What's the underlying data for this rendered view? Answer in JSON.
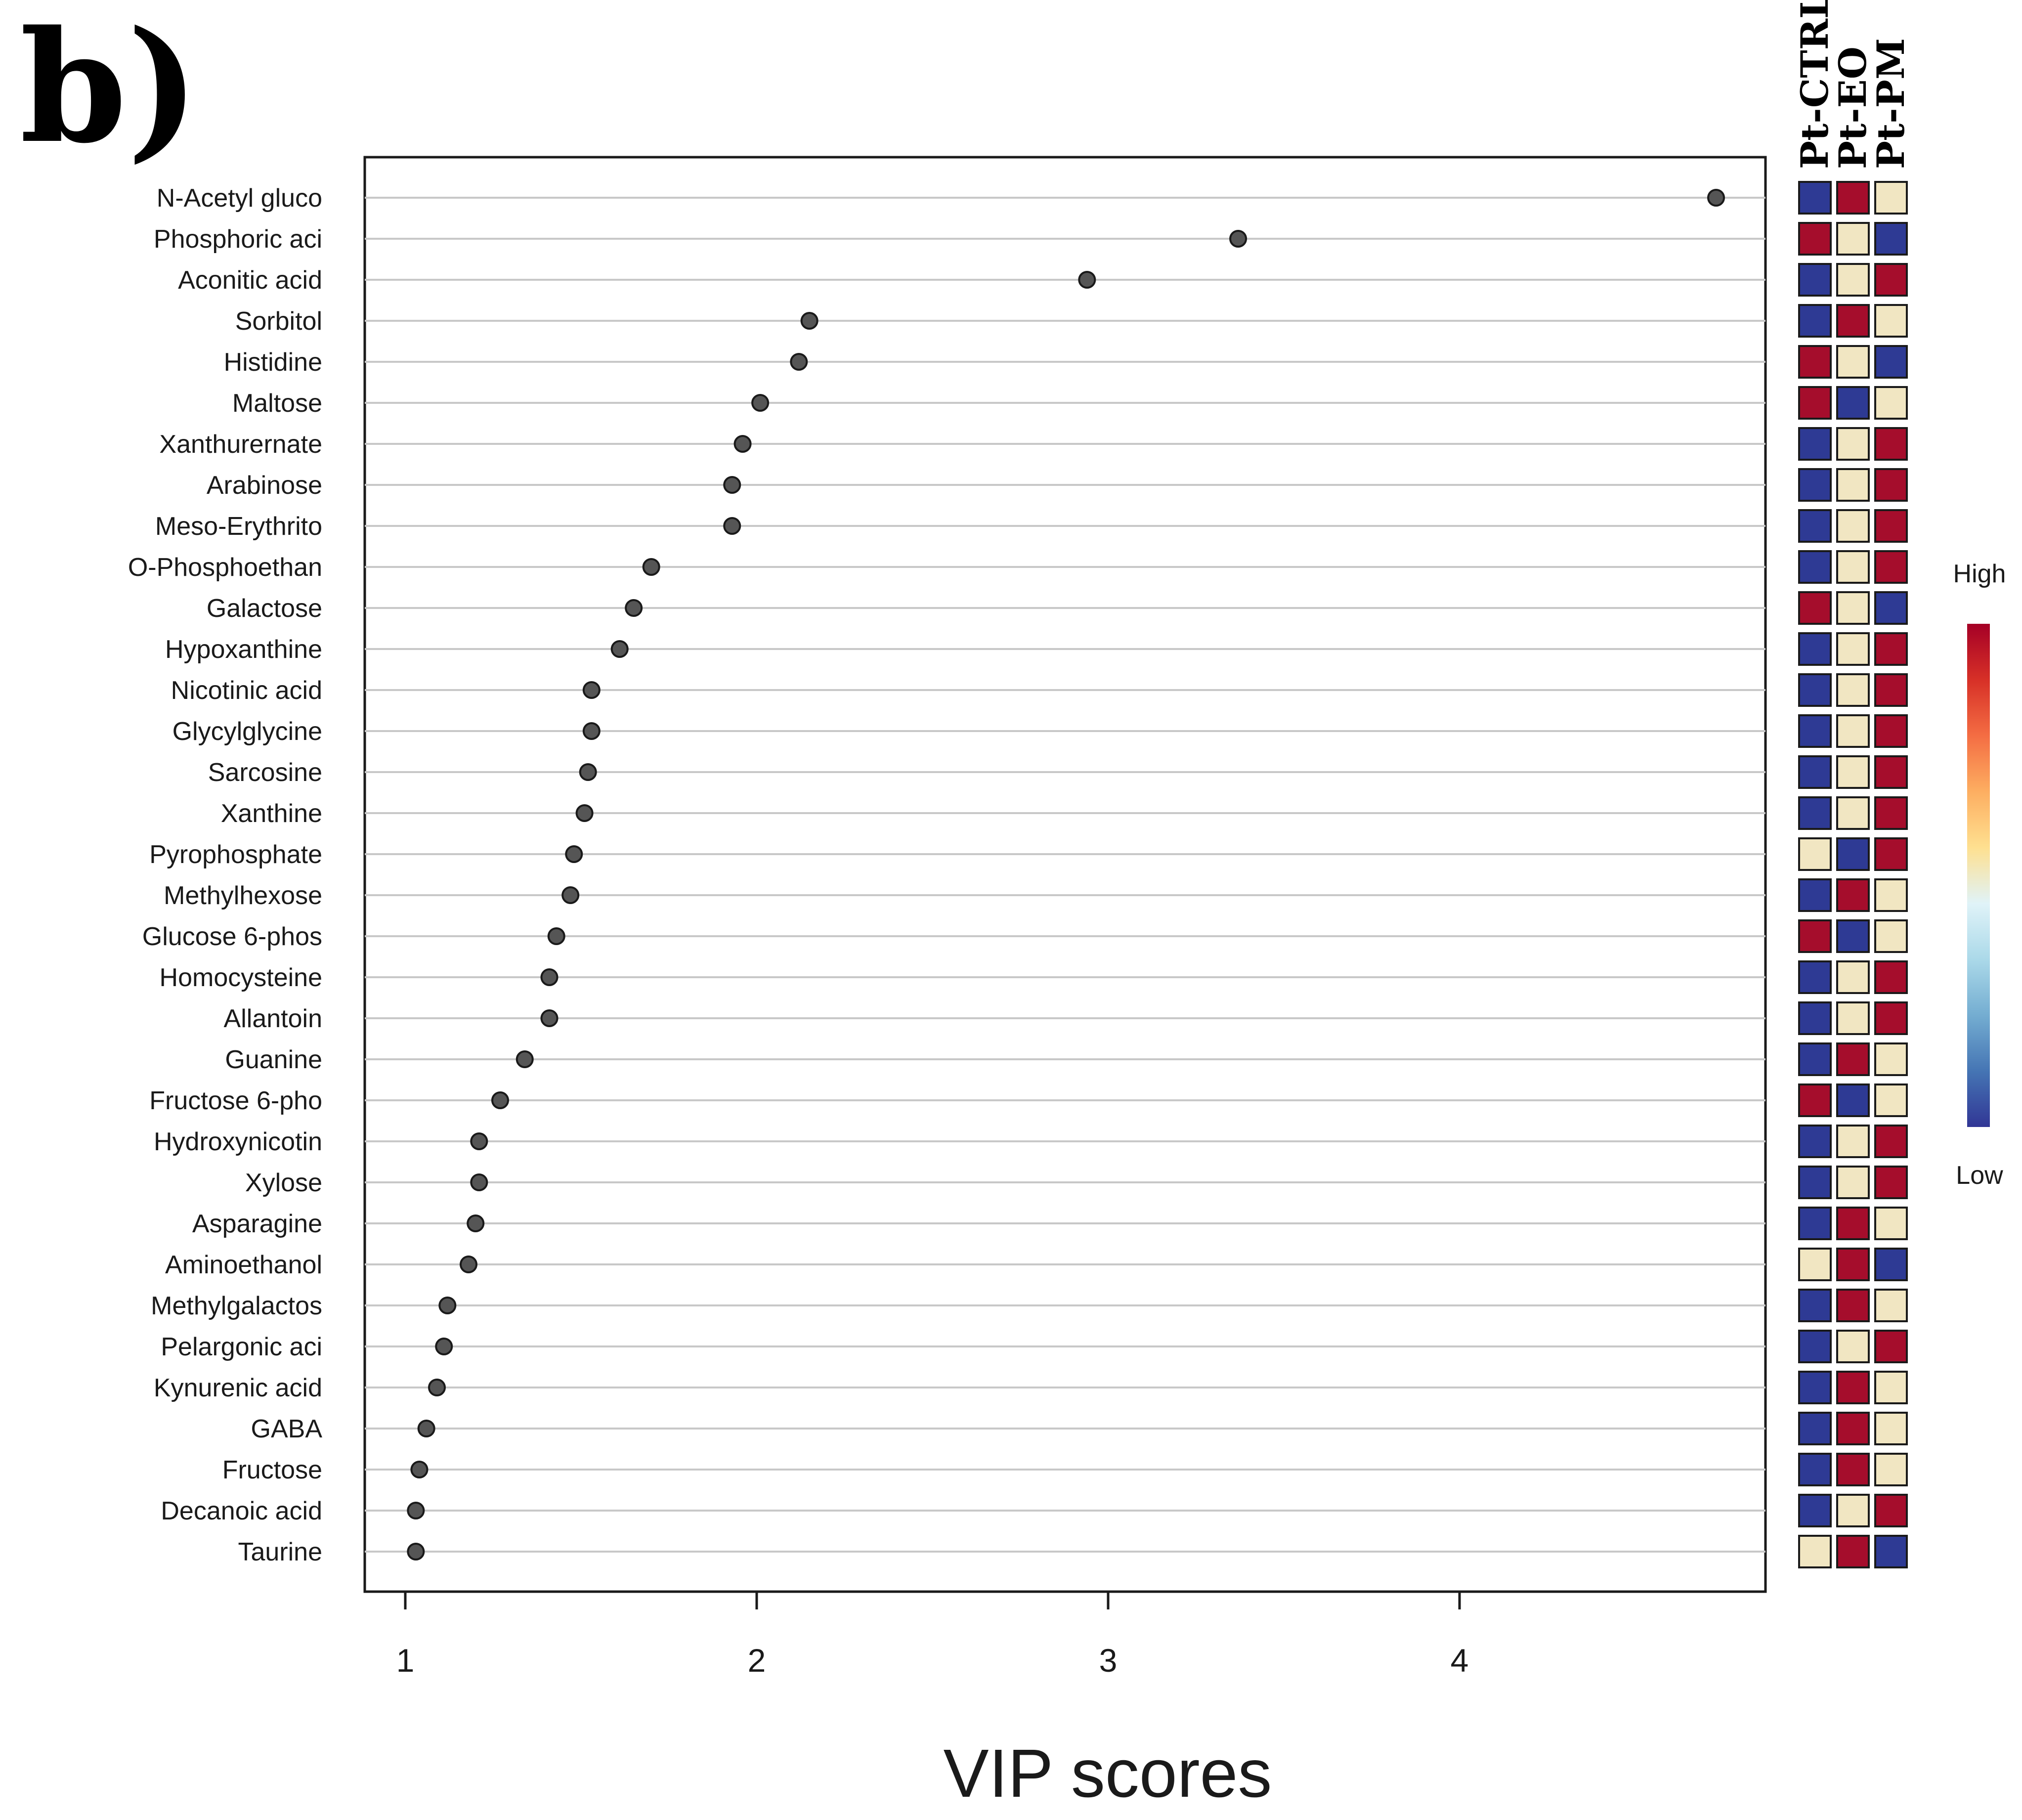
{
  "panel_label": "b)",
  "chart_data": {
    "type": "scatter",
    "title": "",
    "xlabel": "VIP scores",
    "ylabel": "",
    "xlim": [
      0.88,
      4.88
    ],
    "xticks": [
      1,
      2,
      3,
      4
    ],
    "grid": true,
    "metabolites": [
      {
        "name": "N-Acetyl gluco",
        "vip": 4.73,
        "levels": [
          "low",
          "high",
          "mid"
        ]
      },
      {
        "name": "Phosphoric aci",
        "vip": 3.37,
        "levels": [
          "high",
          "mid",
          "low"
        ]
      },
      {
        "name": "Aconitic acid",
        "vip": 2.94,
        "levels": [
          "low",
          "mid",
          "high"
        ]
      },
      {
        "name": "Sorbitol",
        "vip": 2.15,
        "levels": [
          "low",
          "high",
          "mid"
        ]
      },
      {
        "name": "Histidine",
        "vip": 2.12,
        "levels": [
          "high",
          "mid",
          "low"
        ]
      },
      {
        "name": "Maltose",
        "vip": 2.01,
        "levels": [
          "high",
          "low",
          "mid"
        ]
      },
      {
        "name": "Xanthurernate",
        "vip": 1.96,
        "levels": [
          "low",
          "mid",
          "high"
        ]
      },
      {
        "name": "Arabinose",
        "vip": 1.93,
        "levels": [
          "low",
          "mid",
          "high"
        ]
      },
      {
        "name": "Meso-Erythrito",
        "vip": 1.93,
        "levels": [
          "low",
          "mid",
          "high"
        ]
      },
      {
        "name": "O-Phosphoethan",
        "vip": 1.7,
        "levels": [
          "low",
          "mid",
          "high"
        ]
      },
      {
        "name": "Galactose",
        "vip": 1.65,
        "levels": [
          "high",
          "mid",
          "low"
        ]
      },
      {
        "name": "Hypoxanthine",
        "vip": 1.61,
        "levels": [
          "low",
          "mid",
          "high"
        ]
      },
      {
        "name": "Nicotinic acid",
        "vip": 1.53,
        "levels": [
          "low",
          "mid",
          "high"
        ]
      },
      {
        "name": "Glycylglycine",
        "vip": 1.53,
        "levels": [
          "low",
          "mid",
          "high"
        ]
      },
      {
        "name": "Sarcosine",
        "vip": 1.52,
        "levels": [
          "low",
          "mid",
          "high"
        ]
      },
      {
        "name": "Xanthine",
        "vip": 1.51,
        "levels": [
          "low",
          "mid",
          "high"
        ]
      },
      {
        "name": "Pyrophosphate",
        "vip": 1.48,
        "levels": [
          "mid",
          "low",
          "high"
        ]
      },
      {
        "name": "Methylhexose",
        "vip": 1.47,
        "levels": [
          "low",
          "high",
          "mid"
        ]
      },
      {
        "name": "Glucose 6-phos",
        "vip": 1.43,
        "levels": [
          "high",
          "low",
          "mid"
        ]
      },
      {
        "name": "Homocysteine",
        "vip": 1.41,
        "levels": [
          "low",
          "mid",
          "high"
        ]
      },
      {
        "name": "Allantoin",
        "vip": 1.41,
        "levels": [
          "low",
          "mid",
          "high"
        ]
      },
      {
        "name": "Guanine",
        "vip": 1.34,
        "levels": [
          "low",
          "high",
          "mid"
        ]
      },
      {
        "name": "Fructose 6-pho",
        "vip": 1.27,
        "levels": [
          "high",
          "low",
          "mid"
        ]
      },
      {
        "name": "Hydroxynicotin",
        "vip": 1.21,
        "levels": [
          "low",
          "mid",
          "high"
        ]
      },
      {
        "name": "Xylose",
        "vip": 1.21,
        "levels": [
          "low",
          "mid",
          "high"
        ]
      },
      {
        "name": "Asparagine",
        "vip": 1.2,
        "levels": [
          "low",
          "high",
          "mid"
        ]
      },
      {
        "name": "Aminoethanol",
        "vip": 1.18,
        "levels": [
          "mid",
          "high",
          "low"
        ]
      },
      {
        "name": "Methylgalactos",
        "vip": 1.12,
        "levels": [
          "low",
          "high",
          "mid"
        ]
      },
      {
        "name": "Pelargonic aci",
        "vip": 1.11,
        "levels": [
          "low",
          "mid",
          "high"
        ]
      },
      {
        "name": "Kynurenic acid",
        "vip": 1.09,
        "levels": [
          "low",
          "high",
          "mid"
        ]
      },
      {
        "name": "GABA",
        "vip": 1.06,
        "levels": [
          "low",
          "high",
          "mid"
        ]
      },
      {
        "name": "Fructose",
        "vip": 1.04,
        "levels": [
          "low",
          "high",
          "mid"
        ]
      },
      {
        "name": "Decanoic acid",
        "vip": 1.03,
        "levels": [
          "low",
          "mid",
          "high"
        ]
      },
      {
        "name": "Taurine",
        "vip": 1.03,
        "levels": [
          "mid",
          "high",
          "low"
        ]
      }
    ],
    "groups": [
      "Pt-CTRL",
      "Pt-EO",
      "Pt-PM"
    ],
    "colorbar": {
      "high_label": "High",
      "low_label": "Low"
    }
  },
  "colors": {
    "high": "#a50d2c",
    "mid": "#f1e6c2",
    "low": "#2e3a94",
    "point_fill": "#555555",
    "gridline": "#c8c8c8",
    "gradient": [
      "#313695",
      "#4575b4",
      "#74add1",
      "#abd9e9",
      "#e0f3f8",
      "#fee090",
      "#fdae61",
      "#f46d43",
      "#d73027",
      "#a50026"
    ]
  }
}
